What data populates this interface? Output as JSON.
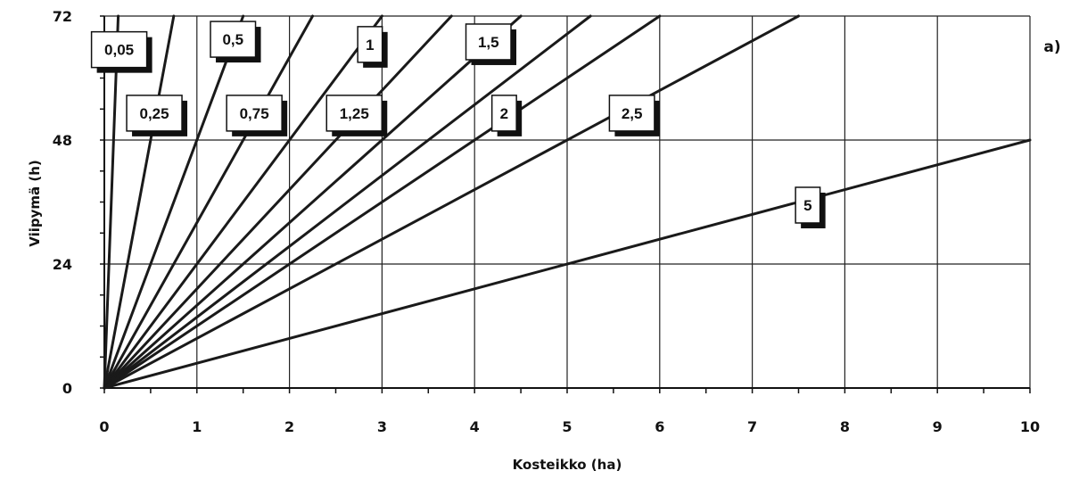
{
  "chart_data": {
    "type": "line",
    "panel_label": "a)",
    "xlabel": "Kosteikko (ha)",
    "ylabel": "Viipymä (h)",
    "xlim": [
      0,
      10
    ],
    "ylim": [
      0,
      72
    ],
    "x_ticks": [
      0,
      1,
      2,
      3,
      4,
      5,
      6,
      7,
      8,
      9,
      10
    ],
    "x_tick_labels": [
      "0",
      "1",
      "2",
      "3",
      "4",
      "5",
      "6",
      "7",
      "8",
      "9",
      "10"
    ],
    "y_ticks": [
      0,
      24,
      48,
      72
    ],
    "y_tick_labels": [
      "0",
      "24",
      "48",
      "72"
    ],
    "grid": true,
    "series": [
      {
        "name": "0,05",
        "slope": 480
      },
      {
        "name": "0,25",
        "slope": 96
      },
      {
        "name": "0,5",
        "slope": 96
      },
      {
        "name": "0,75",
        "slope": 48
      },
      {
        "name": "1",
        "slope": 32
      },
      {
        "name": "1,25",
        "slope": 24
      },
      {
        "name": "1,5",
        "slope": 19.2
      },
      {
        "name": "2",
        "slope": 16
      },
      {
        "name": "2,5",
        "slope": 12
      },
      {
        "name": "5",
        "slope": 9.6
      }
    ],
    "extra_lines": [
      {
        "slope": 48
      },
      {
        "slope": 32
      },
      {
        "slope": 24
      },
      {
        "slope": 13.71
      },
      {
        "slope": 4.8
      }
    ],
    "labels": [
      {
        "text": "0,05",
        "x": 0.16,
        "y": 65.5
      },
      {
        "text": "0,5",
        "x": 1.39,
        "y": 67.5
      },
      {
        "text": "1",
        "x": 2.87,
        "y": 66.5
      },
      {
        "text": "1,5",
        "x": 4.15,
        "y": 67.0
      },
      {
        "text": "0,25",
        "x": 0.54,
        "y": 53.2
      },
      {
        "text": "0,75",
        "x": 1.62,
        "y": 53.2
      },
      {
        "text": "1,25",
        "x": 2.7,
        "y": 53.2
      },
      {
        "text": "2",
        "x": 4.32,
        "y": 53.2
      },
      {
        "text": "2,5",
        "x": 5.7,
        "y": 53.2
      },
      {
        "text": "5",
        "x": 7.6,
        "y": 35.4
      }
    ],
    "colors": {
      "line": "#1a1a1a",
      "grid": "#222222",
      "label_shadow": "#111111"
    }
  }
}
